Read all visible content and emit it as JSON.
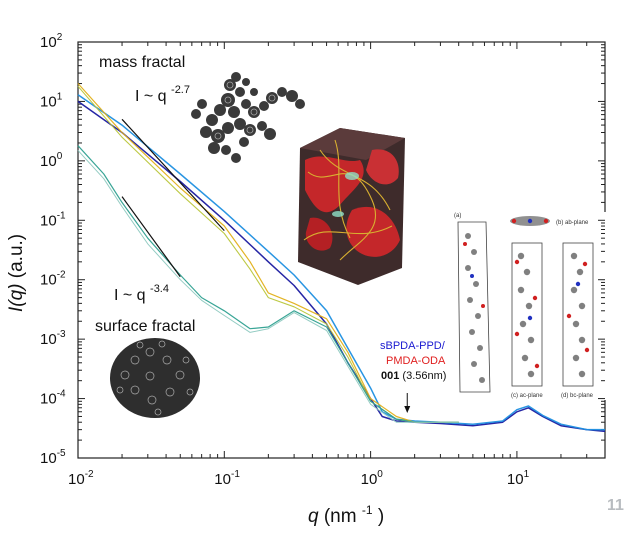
{
  "chart_data": {
    "type": "line",
    "title": "",
    "xscale": "log",
    "yscale": "log",
    "xlim": [
      0.01,
      40
    ],
    "ylim": [
      1e-05,
      100
    ],
    "xlabel_italic": "q",
    "xlabel_unit": " (nm",
    "xlabel_exp": "-1",
    "xlabel_close": ")",
    "ylabel_italic": "I(q)",
    "ylabel_unit": " (a.u.)",
    "x_ticks": [
      {
        "value": 0.01,
        "base": "10",
        "exp": "-2"
      },
      {
        "value": 0.1,
        "base": "10",
        "exp": "-1"
      },
      {
        "value": 1,
        "base": "10",
        "exp": "0"
      },
      {
        "value": 10,
        "base": "10",
        "exp": "1"
      }
    ],
    "y_ticks": [
      {
        "value": 100,
        "base": "10",
        "exp": "2"
      },
      {
        "value": 10,
        "base": "10",
        "exp": "1"
      },
      {
        "value": 1,
        "base": "10",
        "exp": "0"
      },
      {
        "value": 0.1,
        "base": "10",
        "exp": "-1"
      },
      {
        "value": 0.01,
        "base": "10",
        "exp": "-2"
      },
      {
        "value": 0.001,
        "base": "10",
        "exp": "-3"
      },
      {
        "value": 0.0001,
        "base": "10",
        "exp": "-4"
      },
      {
        "value": 1e-05,
        "base": "10",
        "exp": "-5"
      }
    ],
    "series": [
      {
        "color": "#1a1aa0",
        "width": 1.5,
        "x": [
          0.01,
          0.02,
          0.05,
          0.1,
          0.2,
          0.3,
          0.5,
          0.7,
          1.0,
          1.2,
          1.5,
          2,
          3,
          5,
          8,
          10,
          12,
          15,
          20,
          30,
          40
        ],
        "y": [
          10,
          3,
          0.45,
          0.1,
          0.02,
          0.008,
          0.0018,
          0.0004,
          0.0001,
          5e-05,
          4.2e-05,
          4e-05,
          3.8e-05,
          3.5e-05,
          4e-05,
          6e-05,
          7e-05,
          5e-05,
          3.5e-05,
          3e-05,
          2.8e-05
        ]
      },
      {
        "color": "#1e8fe0",
        "width": 1.5,
        "x": [
          0.01,
          0.02,
          0.05,
          0.1,
          0.2,
          0.3,
          0.5,
          0.7,
          1.0,
          1.2,
          1.5,
          2,
          3,
          5,
          8,
          10,
          12,
          15,
          20,
          30,
          40
        ],
        "y": [
          13,
          4,
          0.6,
          0.14,
          0.03,
          0.012,
          0.003,
          0.0007,
          0.00015,
          6e-05,
          4.5e-05,
          4.2e-05,
          4e-05,
          3.7e-05,
          4.2e-05,
          6.5e-05,
          7.5e-05,
          5.2e-05,
          3.7e-05,
          3e-05,
          3e-05
        ]
      },
      {
        "color": "#e2b019",
        "width": 1.2,
        "x": [
          0.01,
          0.02,
          0.05,
          0.1,
          0.15,
          0.2,
          0.3,
          0.5,
          0.7,
          1.0,
          1.5,
          2,
          3,
          4
        ],
        "y": [
          20,
          3,
          0.35,
          0.08,
          0.02,
          0.006,
          0.004,
          0.0022,
          0.0006,
          0.0001,
          5e-05,
          4e-05,
          4e-05,
          4e-05
        ]
      },
      {
        "color": "#b9c63a",
        "width": 1.1,
        "x": [
          0.01,
          0.02,
          0.05,
          0.1,
          0.15,
          0.2,
          0.3,
          0.5,
          0.7,
          1.0,
          1.5,
          2,
          3,
          4
        ],
        "y": [
          18,
          2.5,
          0.28,
          0.06,
          0.015,
          0.005,
          0.0035,
          0.0018,
          0.0005,
          9e-05,
          4.5e-05,
          4e-05,
          4e-05,
          4e-05
        ]
      },
      {
        "color": "#2ea090",
        "width": 1.2,
        "x": [
          0.01,
          0.015,
          0.02,
          0.03,
          0.05,
          0.07,
          0.1,
          0.15,
          0.2,
          0.3,
          0.5,
          0.7,
          1.0,
          1.5,
          2,
          3,
          4
        ],
        "y": [
          1.8,
          0.6,
          0.2,
          0.05,
          0.012,
          0.005,
          0.003,
          0.0015,
          0.0016,
          0.003,
          0.0016,
          0.0004,
          9e-05,
          4.5e-05,
          4e-05,
          4e-05,
          4e-05
        ]
      },
      {
        "color": "#8ec9c0",
        "width": 1.0,
        "x": [
          0.01,
          0.015,
          0.02,
          0.03,
          0.05,
          0.07,
          0.1,
          0.15,
          0.2,
          0.3,
          0.5,
          0.7,
          1.0,
          1.5,
          2,
          3,
          4
        ],
        "y": [
          1.5,
          0.5,
          0.17,
          0.04,
          0.01,
          0.0045,
          0.0025,
          0.0013,
          0.0015,
          0.0028,
          0.0014,
          0.00035,
          8e-05,
          4e-05,
          4e-05,
          4e-05,
          4e-05
        ]
      }
    ],
    "ref_lines": [
      {
        "x": [
          0.02,
          0.1
        ],
        "y": [
          5,
          0.067
        ]
      },
      {
        "x": [
          0.02,
          0.05
        ],
        "y": [
          0.25,
          0.0112
        ]
      }
    ],
    "annotations": {
      "mass_fractal": "mass fractal",
      "mass_law_prefix": "I ~ q",
      "mass_law_exp": "-2.7",
      "surface_law_prefix": "I ~ q",
      "surface_law_exp": "-3.4",
      "surface_fractal": "surface fractal",
      "legend_line1": "sBPDA-PPD/",
      "legend_line2": "PMDA-ODA",
      "legend_line3_bold": "001",
      "legend_line3_rest": " (3.56nm)",
      "legend_color1": "#1a1ad0",
      "legend_color2": "#e02020",
      "inset_a": "(a)",
      "inset_b": "(b) ab-plane",
      "inset_c": "(c) ac-plane",
      "inset_d": "(d) bc-plane",
      "arrow_x": 1.78,
      "corner_mark": "11"
    }
  }
}
